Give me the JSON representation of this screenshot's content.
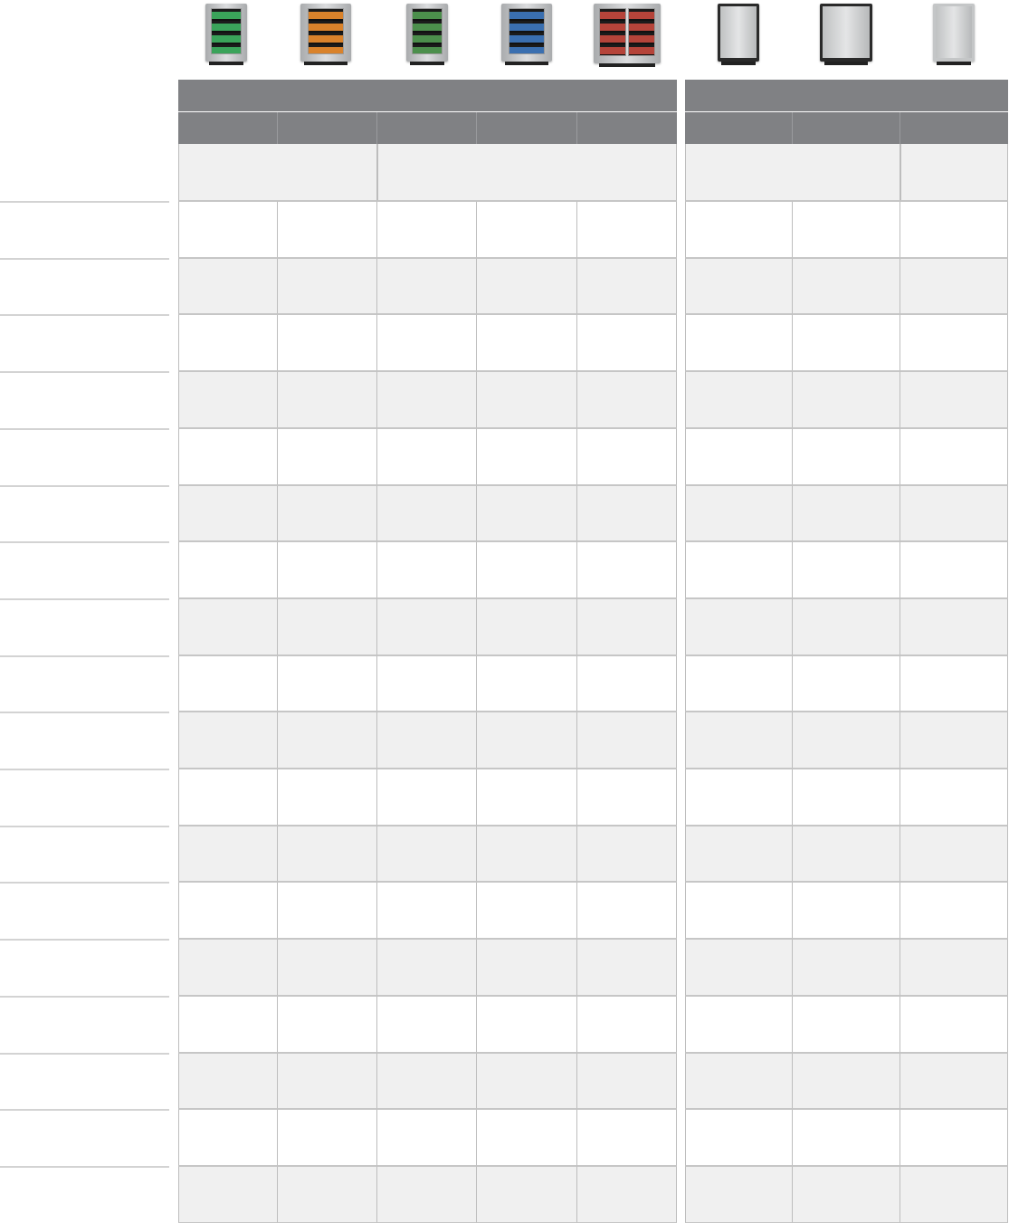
{
  "products": [
    {
      "icon": "glass-door-beverage-center-icon",
      "group": "glass",
      "shelf_color": "#3aa35a"
    },
    {
      "icon": "glass-door-beverage-center-icon",
      "group": "glass",
      "shelf_color": "#d9822b"
    },
    {
      "icon": "glass-door-beverage-center-icon",
      "group": "glass",
      "shelf_color": "#4c8f4c"
    },
    {
      "icon": "glass-door-beverage-center-icon",
      "group": "glass",
      "shelf_color": "#3a6fb0"
    },
    {
      "icon": "double-glass-door-beverage-center-icon",
      "group": "glass",
      "shelf_color": "#b5443a"
    },
    {
      "icon": "solid-door-refrigerator-icon",
      "group": "solid",
      "body_color": "#2a2a2a"
    },
    {
      "icon": "solid-door-refrigerator-icon",
      "group": "solid",
      "body_color": "#2a2a2a"
    },
    {
      "icon": "solid-door-refrigerator-icon",
      "group": "solid",
      "body_color": "#c4c6c7"
    }
  ],
  "colors": {
    "header": "#808184",
    "row_alt": "#f0f0f0",
    "row": "#ffffff",
    "grid_line": "#bdbdbd"
  },
  "table": {
    "row_count": 18
  }
}
